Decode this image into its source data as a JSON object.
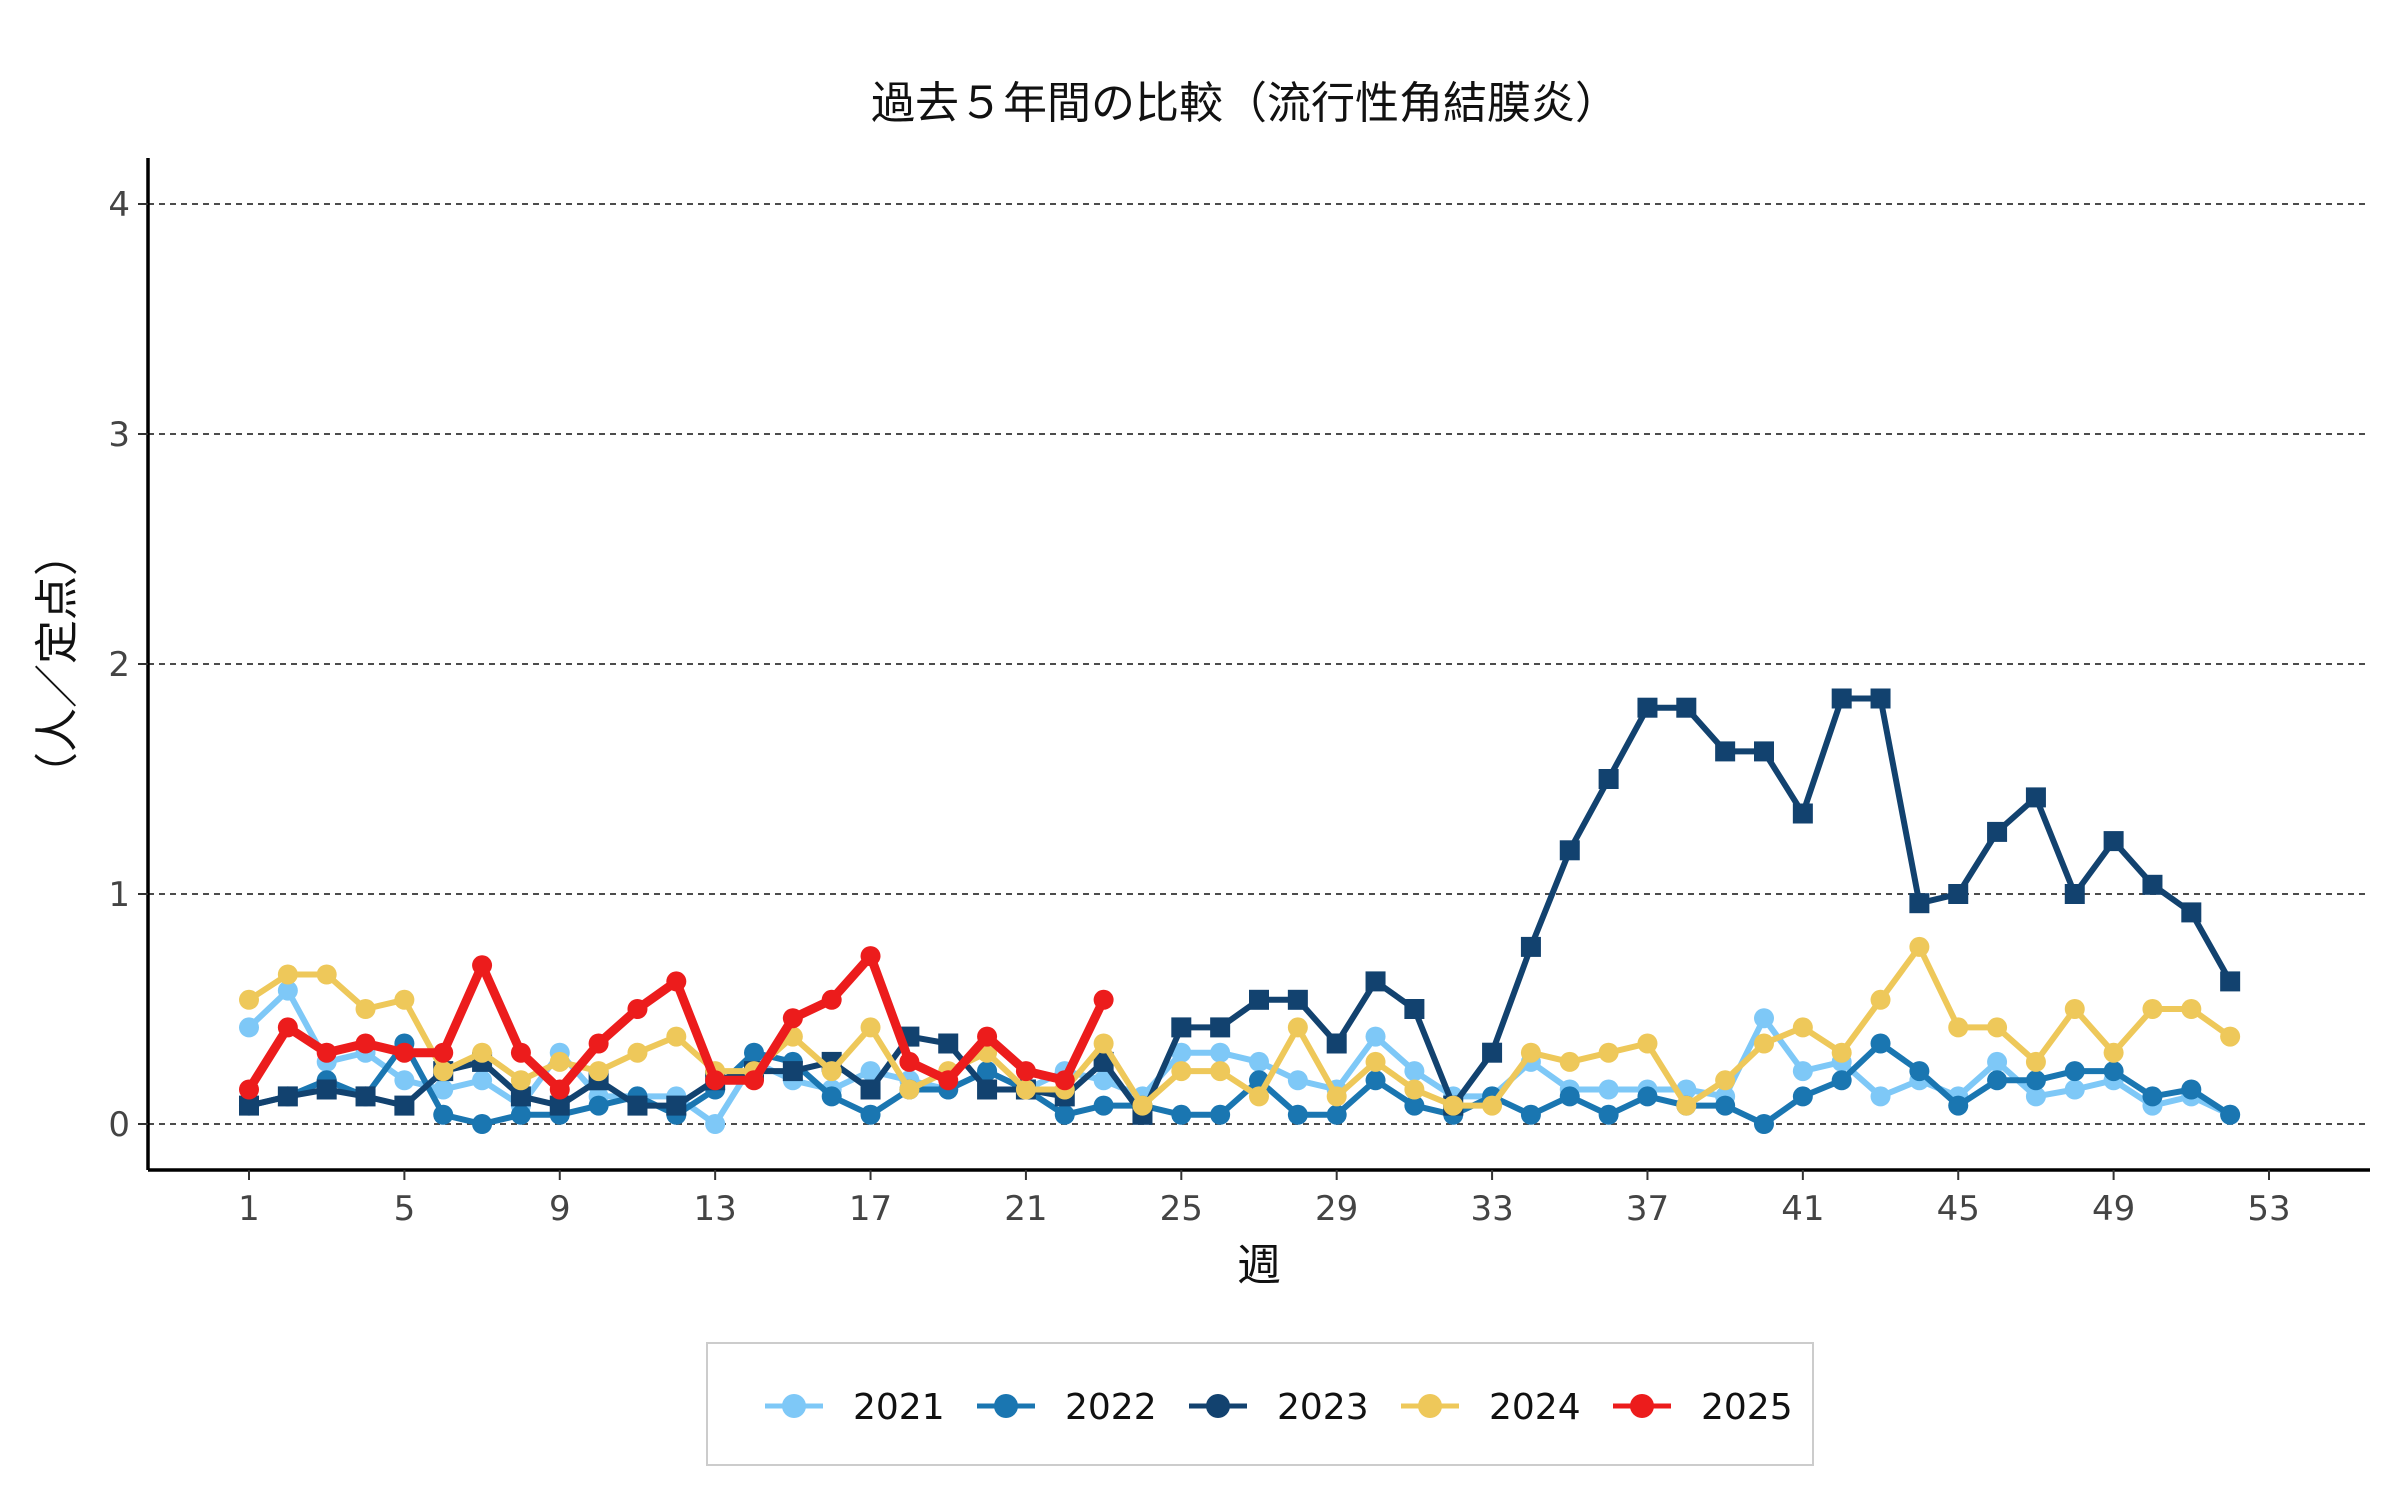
{
  "chart_data": {
    "type": "line",
    "title": "過去５年間の比較（流行性角結膜炎）",
    "xlabel": "週",
    "ylabel": "（人／定点）",
    "xlim": [
      -1.6,
      55.6
    ],
    "ylim": [
      -0.2,
      4.2
    ],
    "x_ticks": [
      1,
      5,
      9,
      13,
      17,
      21,
      25,
      29,
      33,
      37,
      41,
      45,
      49,
      53
    ],
    "x_tick_labels": [
      "1",
      "5",
      "9",
      "13",
      "17",
      "21",
      "25",
      "29",
      "33",
      "37",
      "41",
      "45",
      "49",
      "53"
    ],
    "y_ticks": [
      0,
      1,
      2,
      3,
      4
    ],
    "y_tick_labels": [
      "0",
      "1",
      "2",
      "3",
      "4"
    ],
    "grid": "horizontal dashed",
    "legend_position": "bottom",
    "series": [
      {
        "name": "2021",
        "color": "#7ec8f7",
        "marker": "circle",
        "x": [
          1,
          2,
          3,
          4,
          5,
          6,
          7,
          8,
          9,
          10,
          11,
          12,
          13,
          14,
          15,
          16,
          17,
          18,
          19,
          20,
          21,
          22,
          23,
          24,
          25,
          26,
          27,
          28,
          29,
          30,
          31,
          32,
          33,
          34,
          35,
          36,
          37,
          38,
          39,
          40,
          41,
          42,
          43,
          44,
          45,
          46,
          47,
          48,
          49,
          50,
          51,
          52
        ],
        "values": [
          0.42,
          0.58,
          0.27,
          0.31,
          0.19,
          0.15,
          0.19,
          0.08,
          0.31,
          0.12,
          0.12,
          0.12,
          0.0,
          0.27,
          0.19,
          0.15,
          0.23,
          0.19,
          0.15,
          0.23,
          0.15,
          0.23,
          0.19,
          0.12,
          0.31,
          0.31,
          0.27,
          0.19,
          0.15,
          0.38,
          0.23,
          0.12,
          0.12,
          0.27,
          0.15,
          0.15,
          0.15,
          0.15,
          0.12,
          0.46,
          0.23,
          0.27,
          0.12,
          0.19,
          0.12,
          0.27,
          0.12,
          0.15,
          0.19,
          0.08,
          0.12,
          0.04
        ]
      },
      {
        "name": "2022",
        "color": "#1a76b1",
        "marker": "circle",
        "x": [
          1,
          2,
          3,
          4,
          5,
          6,
          7,
          8,
          9,
          10,
          11,
          12,
          13,
          14,
          15,
          16,
          17,
          18,
          19,
          20,
          21,
          22,
          23,
          24,
          25,
          26,
          27,
          28,
          29,
          30,
          31,
          32,
          33,
          34,
          35,
          36,
          37,
          38,
          39,
          40,
          41,
          42,
          43,
          44,
          45,
          46,
          47,
          48,
          49,
          50,
          51,
          52
        ],
        "values": [
          0.08,
          0.12,
          0.19,
          0.12,
          0.35,
          0.04,
          0.0,
          0.04,
          0.04,
          0.08,
          0.12,
          0.04,
          0.15,
          0.31,
          0.27,
          0.12,
          0.04,
          0.15,
          0.15,
          0.23,
          0.15,
          0.04,
          0.08,
          0.08,
          0.04,
          0.04,
          0.19,
          0.04,
          0.04,
          0.19,
          0.08,
          0.04,
          0.12,
          0.04,
          0.12,
          0.04,
          0.12,
          0.08,
          0.08,
          0.0,
          0.12,
          0.19,
          0.35,
          0.23,
          0.08,
          0.19,
          0.19,
          0.23,
          0.23,
          0.12,
          0.15,
          0.04
        ]
      },
      {
        "name": "2023",
        "color": "#12426f",
        "marker": "square",
        "x": [
          1,
          2,
          3,
          4,
          5,
          6,
          7,
          8,
          9,
          10,
          11,
          12,
          13,
          14,
          15,
          16,
          17,
          18,
          19,
          20,
          21,
          22,
          23,
          24,
          25,
          26,
          27,
          28,
          29,
          30,
          31,
          32,
          33,
          34,
          35,
          36,
          37,
          38,
          39,
          40,
          41,
          42,
          43,
          44,
          45,
          46,
          47,
          48,
          49,
          50,
          51,
          52
        ],
        "values": [
          0.08,
          0.12,
          0.15,
          0.12,
          0.08,
          0.23,
          0.27,
          0.12,
          0.08,
          0.19,
          0.08,
          0.08,
          0.19,
          0.23,
          0.23,
          0.27,
          0.15,
          0.38,
          0.35,
          0.15,
          0.15,
          0.12,
          0.27,
          0.04,
          0.42,
          0.42,
          0.54,
          0.54,
          0.35,
          0.62,
          0.5,
          0.08,
          0.31,
          0.77,
          1.19,
          1.5,
          1.81,
          1.81,
          1.62,
          1.62,
          1.35,
          1.85,
          1.85,
          0.96,
          1.0,
          1.27,
          1.42,
          1.0,
          1.23,
          1.04,
          0.92,
          0.62
        ]
      },
      {
        "name": "2024",
        "color": "#eec85a",
        "marker": "circle",
        "x": [
          1,
          2,
          3,
          4,
          5,
          6,
          7,
          8,
          9,
          10,
          11,
          12,
          13,
          14,
          15,
          16,
          17,
          18,
          19,
          20,
          21,
          22,
          23,
          24,
          25,
          26,
          27,
          28,
          29,
          30,
          31,
          32,
          33,
          34,
          35,
          36,
          37,
          38,
          39,
          40,
          41,
          42,
          43,
          44,
          45,
          46,
          47,
          48,
          49,
          50,
          51,
          52
        ],
        "values": [
          0.54,
          0.65,
          0.65,
          0.5,
          0.54,
          0.23,
          0.31,
          0.19,
          0.27,
          0.23,
          0.31,
          0.38,
          0.23,
          0.23,
          0.38,
          0.23,
          0.42,
          0.15,
          0.23,
          0.31,
          0.15,
          0.15,
          0.35,
          0.08,
          0.23,
          0.23,
          0.12,
          0.42,
          0.12,
          0.27,
          0.15,
          0.08,
          0.08,
          0.31,
          0.27,
          0.31,
          0.35,
          0.08,
          0.19,
          0.35,
          0.42,
          0.31,
          0.54,
          0.77,
          0.42,
          0.42,
          0.27,
          0.5,
          0.31,
          0.5,
          0.5,
          0.38
        ]
      },
      {
        "name": "2025",
        "color": "#ec1c1c",
        "marker": "circle",
        "x": [
          1,
          2,
          3,
          4,
          5,
          6,
          7,
          8,
          9,
          10,
          11,
          12,
          13,
          14,
          15,
          16,
          17,
          18,
          19,
          20,
          21,
          22,
          23
        ],
        "values": [
          0.15,
          0.42,
          0.31,
          0.35,
          0.31,
          0.31,
          0.69,
          0.31,
          0.15,
          0.35,
          0.5,
          0.62,
          0.19,
          0.19,
          0.46,
          0.54,
          0.73,
          0.27,
          0.19,
          0.38,
          0.23,
          0.19,
          0.54
        ]
      }
    ]
  }
}
